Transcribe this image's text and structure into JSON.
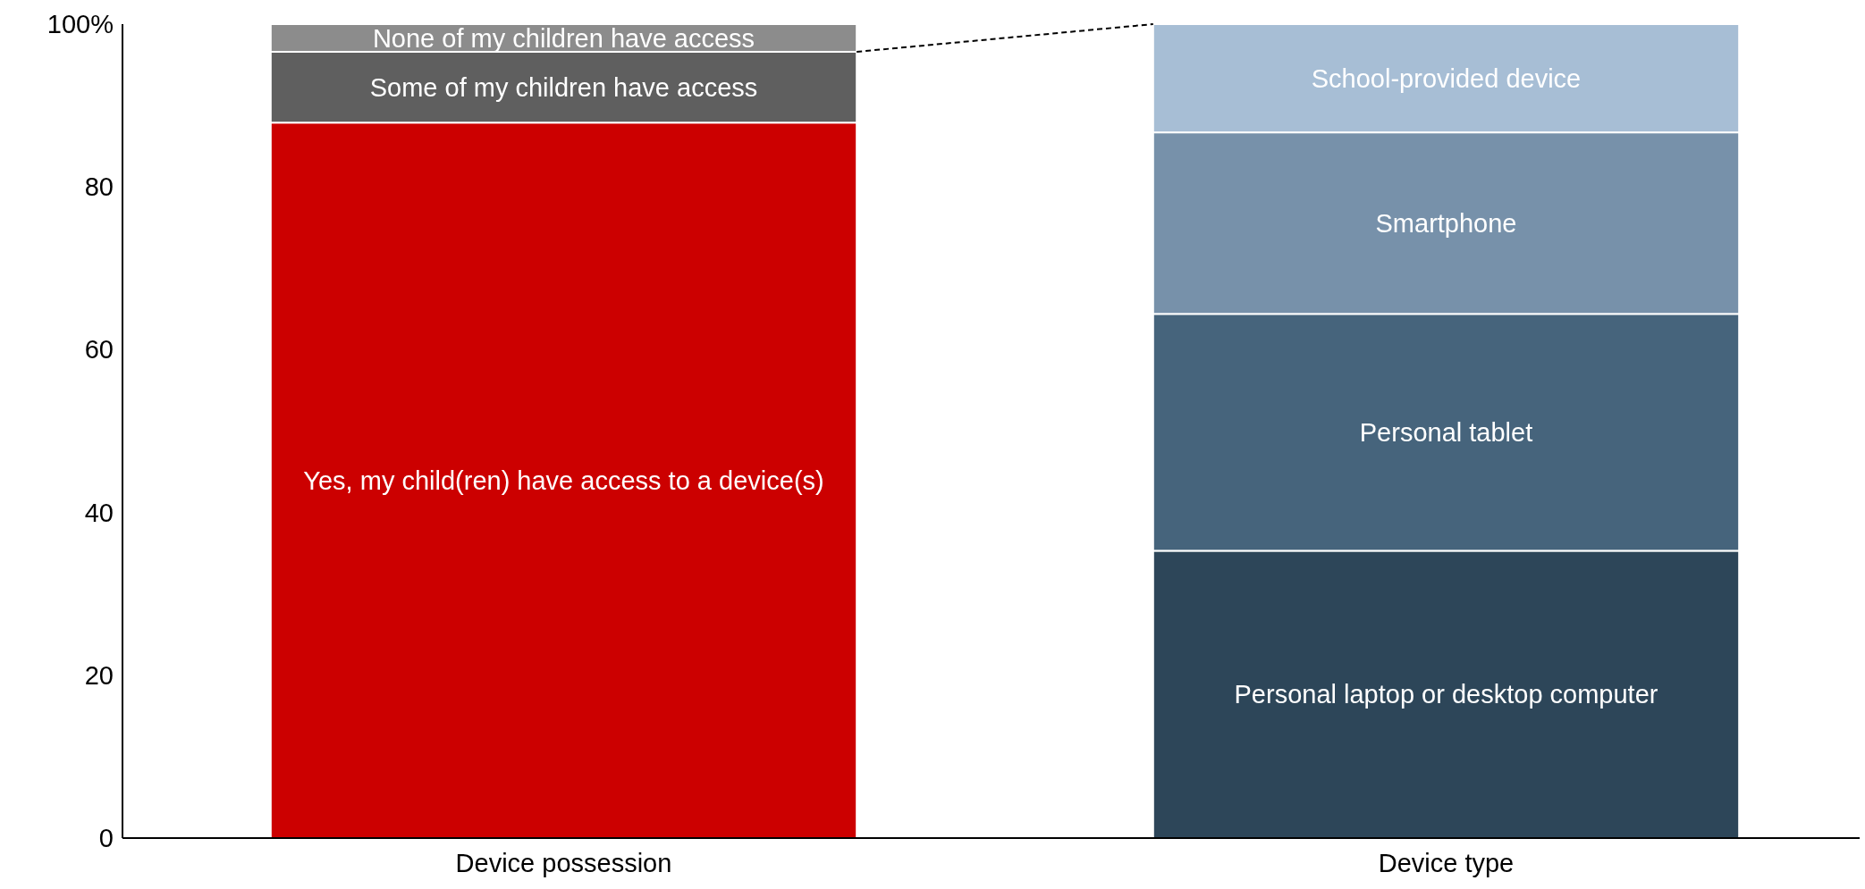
{
  "chart_data": {
    "type": "bar",
    "stacked": true,
    "categories": [
      "Device possession",
      "Device type"
    ],
    "series": [
      {
        "name": "Yes, my child(ren) have access to a device(s)",
        "color": "#cc0000",
        "values": [
          87.9,
          null
        ]
      },
      {
        "name": "Some of my children have access",
        "color": "#5f5f5f",
        "values": [
          8.7,
          null
        ]
      },
      {
        "name": "None of my children have access",
        "color": "#8c8c8c",
        "values": [
          3.4,
          null
        ]
      },
      {
        "name": "Personal laptop or desktop computer",
        "color": "#2d4659",
        "values": [
          null,
          35.3
        ]
      },
      {
        "name": "Personal tablet",
        "color": "#46647c",
        "values": [
          null,
          29.1
        ]
      },
      {
        "name": "Smartphone",
        "color": "#7791aa",
        "values": [
          null,
          22.3
        ]
      },
      {
        "name": "School-provided device",
        "color": "#a7bed5",
        "values": [
          null,
          13.3
        ]
      }
    ],
    "ylim": [
      0,
      100
    ],
    "yticks": [
      0,
      20,
      40,
      60,
      80,
      {
        "value": 100,
        "label": "100%"
      }
    ],
    "grid": false
  }
}
